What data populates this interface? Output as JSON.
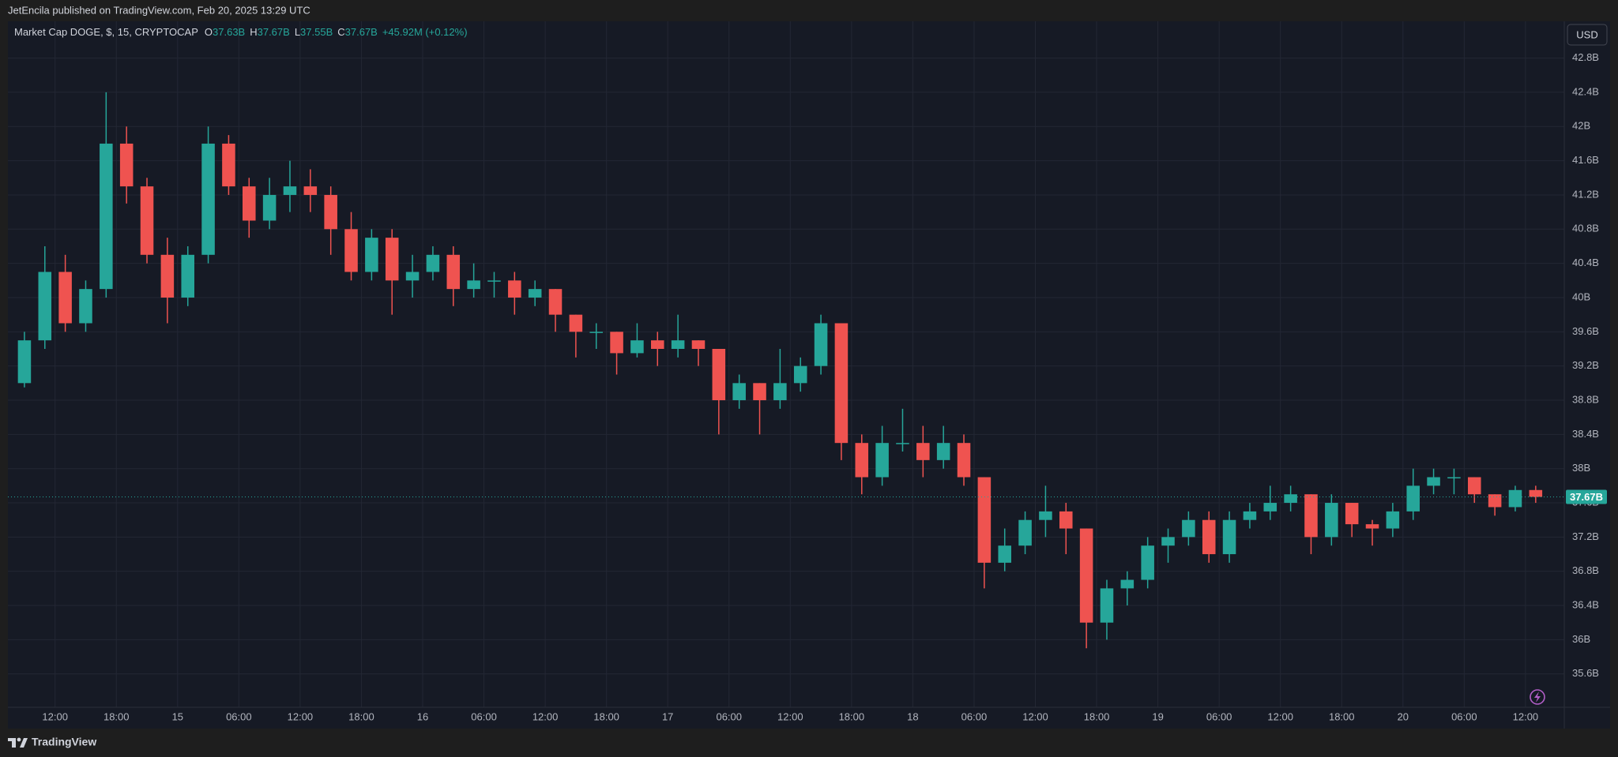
{
  "header": {
    "publisher": "JetEncila published on TradingView.com, Feb 20, 2025 13:29 UTC"
  },
  "footer": {
    "brand": "TradingView"
  },
  "chart_data": {
    "type": "candlestick",
    "title": "Market Cap DOGE, $, 15, CRYPTOCAP",
    "ohlc_legend": [
      {
        "label": "O",
        "text": "37.63B"
      },
      {
        "label": "H",
        "text": "37.67B"
      },
      {
        "label": "L",
        "text": "37.55B"
      },
      {
        "label": "C",
        "text": "37.67B"
      }
    ],
    "change": "+45.92M (+0.12%)",
    "currency": "USD",
    "categories": [
      null,
      null,
      "12:00",
      null,
      null,
      "18:00",
      null,
      null,
      "15",
      null,
      null,
      "06:00",
      null,
      null,
      "12:00",
      null,
      null,
      "18:00",
      null,
      null,
      "16",
      null,
      null,
      "06:00",
      null,
      null,
      "12:00",
      null,
      null,
      "18:00",
      null,
      null,
      "17",
      null,
      null,
      "06:00",
      null,
      null,
      "12:00",
      null,
      null,
      "18:00",
      null,
      null,
      "18",
      null,
      null,
      "06:00",
      null,
      null,
      "12:00",
      null,
      null,
      "18:00",
      null,
      null,
      "19",
      null,
      null,
      "06:00",
      null,
      null,
      "12:00",
      null,
      null,
      "18:00",
      null,
      null,
      "20",
      null,
      null,
      "06:00",
      null,
      null,
      "12:00"
    ],
    "open": [
      39.0,
      39.5,
      40.3,
      39.7,
      40.1,
      41.8,
      41.3,
      40.5,
      40.0,
      40.5,
      41.8,
      41.3,
      40.9,
      41.2,
      41.3,
      41.2,
      40.8,
      40.3,
      40.7,
      40.2,
      40.3,
      40.5,
      40.1,
      40.2,
      40.2,
      40.0,
      40.1,
      39.8,
      39.6,
      39.6,
      39.35,
      39.5,
      39.4,
      39.5,
      39.4,
      38.8,
      39.0,
      38.8,
      39.0,
      39.2,
      39.7,
      38.3,
      37.9,
      38.3,
      38.3,
      38.1,
      38.3,
      37.9,
      36.9,
      37.1,
      37.4,
      37.5,
      37.3,
      36.2,
      36.6,
      36.7,
      37.1,
      37.2,
      37.4,
      37.0,
      37.4,
      37.5,
      37.6,
      37.7,
      37.2,
      37.6,
      37.35,
      37.3,
      37.5,
      37.8,
      37.9,
      37.9,
      37.7,
      37.55,
      37.75
    ],
    "high": [
      39.6,
      40.6,
      40.5,
      40.2,
      42.4,
      42.0,
      41.4,
      40.7,
      40.6,
      42.0,
      41.9,
      41.4,
      41.4,
      41.6,
      41.5,
      41.3,
      41.0,
      40.8,
      40.8,
      40.5,
      40.6,
      40.6,
      40.4,
      40.3,
      40.3,
      40.2,
      40.1,
      39.8,
      39.7,
      39.6,
      39.7,
      39.6,
      39.8,
      39.5,
      39.4,
      39.1,
      39.0,
      39.4,
      39.3,
      39.8,
      39.7,
      38.4,
      38.5,
      38.7,
      38.5,
      38.5,
      38.4,
      37.9,
      37.3,
      37.5,
      37.8,
      37.6,
      37.3,
      36.7,
      36.8,
      37.2,
      37.3,
      37.5,
      37.5,
      37.5,
      37.6,
      37.8,
      37.8,
      37.7,
      37.7,
      37.6,
      37.4,
      37.6,
      38.0,
      38.0,
      38.0,
      37.9,
      37.7,
      37.8,
      37.8
    ],
    "low": [
      38.95,
      39.4,
      39.6,
      39.6,
      40.0,
      41.1,
      40.4,
      39.7,
      39.9,
      40.4,
      41.2,
      40.7,
      40.8,
      41.0,
      41.0,
      40.5,
      40.2,
      40.2,
      39.8,
      40.0,
      40.2,
      39.9,
      40.0,
      40.0,
      39.8,
      39.9,
      39.6,
      39.3,
      39.4,
      39.1,
      39.3,
      39.2,
      39.3,
      39.2,
      38.4,
      38.7,
      38.4,
      38.7,
      38.9,
      39.1,
      38.1,
      37.7,
      37.8,
      38.2,
      37.9,
      38.0,
      37.8,
      36.6,
      36.8,
      37.0,
      37.2,
      37.0,
      35.9,
      36.0,
      36.4,
      36.6,
      36.9,
      37.1,
      36.9,
      36.9,
      37.3,
      37.4,
      37.5,
      37.0,
      37.1,
      37.2,
      37.1,
      37.2,
      37.4,
      37.7,
      37.7,
      37.6,
      37.45,
      37.5,
      37.6
    ],
    "close": [
      39.5,
      40.3,
      39.7,
      40.1,
      41.8,
      41.3,
      40.5,
      40.0,
      40.5,
      41.8,
      41.3,
      40.9,
      41.2,
      41.3,
      41.2,
      40.8,
      40.3,
      40.7,
      40.2,
      40.3,
      40.5,
      40.1,
      40.2,
      40.2,
      40.0,
      40.1,
      39.8,
      39.6,
      39.6,
      39.35,
      39.5,
      39.4,
      39.5,
      39.4,
      38.8,
      39.0,
      38.8,
      39.0,
      39.2,
      39.7,
      38.3,
      37.9,
      38.3,
      38.3,
      38.1,
      38.3,
      37.9,
      36.9,
      37.1,
      37.4,
      37.5,
      37.3,
      36.2,
      36.6,
      36.7,
      37.1,
      37.2,
      37.4,
      37.0,
      37.4,
      37.5,
      37.6,
      37.7,
      37.2,
      37.6,
      37.35,
      37.3,
      37.5,
      37.8,
      37.9,
      37.9,
      37.7,
      37.55,
      37.75,
      37.67
    ],
    "up_color": "#26a69a",
    "down_color": "#ef5350",
    "ylim": [
      35.21,
      43.23
    ],
    "yticks": [
      {
        "value": 42.8,
        "label": "42.8B"
      },
      {
        "value": 42.4,
        "label": "42.4B"
      },
      {
        "value": 42,
        "label": "42B"
      },
      {
        "value": 41.6,
        "label": "41.6B"
      },
      {
        "value": 41.2,
        "label": "41.2B"
      },
      {
        "value": 40.8,
        "label": "40.8B"
      },
      {
        "value": 40.4,
        "label": "40.4B"
      },
      {
        "value": 40,
        "label": "40B"
      },
      {
        "value": 39.6,
        "label": "39.6B"
      },
      {
        "value": 39.2,
        "label": "39.2B"
      },
      {
        "value": 38.8,
        "label": "38.8B"
      },
      {
        "value": 38.4,
        "label": "38.4B"
      },
      {
        "value": 38,
        "label": "38B"
      },
      {
        "value": 37.6,
        "label": "37.6B"
      },
      {
        "value": 37.2,
        "label": "37.2B"
      },
      {
        "value": 36.8,
        "label": "36.8B"
      },
      {
        "value": 36.4,
        "label": "36.4B"
      },
      {
        "value": 36,
        "label": "36B"
      },
      {
        "value": 35.6,
        "label": "35.6B"
      }
    ],
    "grid": true,
    "last_price": {
      "value": 37.67,
      "label": "37.67B"
    }
  }
}
